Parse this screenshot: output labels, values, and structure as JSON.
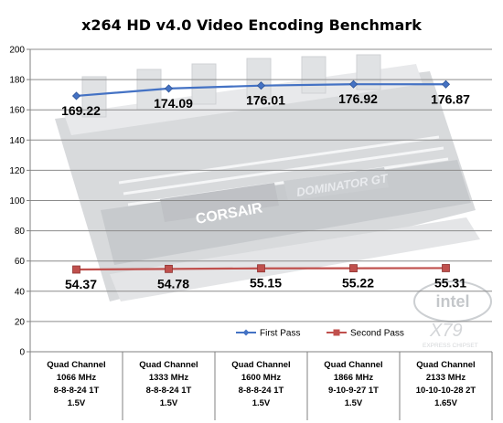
{
  "chart_data": {
    "type": "line",
    "title": "x264 HD v4.0 Video Encoding Benchmark",
    "categories": [
      [
        "Quad Channel",
        "1066 MHz",
        "8-8-8-24 1T",
        "1.5V"
      ],
      [
        "Quad Channel",
        "1333 MHz",
        "8-8-8-24 1T",
        "1.5V"
      ],
      [
        "Quad Channel",
        "1600 MHz",
        "8-8-8-24 1T",
        "1.5V"
      ],
      [
        "Quad Channel",
        "1866 MHz",
        "9-10-9-27 1T",
        "1.5V"
      ],
      [
        "Quad Channel",
        "2133 MHz",
        "10-10-10-28 2T",
        "1.65V"
      ]
    ],
    "series": [
      {
        "name": "First Pass",
        "values": [
          169.22,
          174.09,
          176.01,
          176.92,
          176.87
        ],
        "labels": [
          "169.22",
          "174.09",
          "176.01",
          "176.92",
          "176.87"
        ],
        "color": "#4472c4",
        "marker": "diamond"
      },
      {
        "name": "Second Pass",
        "values": [
          54.37,
          54.78,
          55.15,
          55.22,
          55.31
        ],
        "labels": [
          "54.37",
          "54.78",
          "55.15",
          "55.22",
          "55.31"
        ],
        "color": "#c0504d",
        "marker": "square"
      }
    ],
    "ylim": [
      0,
      200
    ],
    "yticks": [
      "0",
      "20",
      "40",
      "60",
      "80",
      "100",
      "120",
      "140",
      "160",
      "180",
      "200"
    ],
    "grid": true,
    "legend": "bottom-center"
  }
}
